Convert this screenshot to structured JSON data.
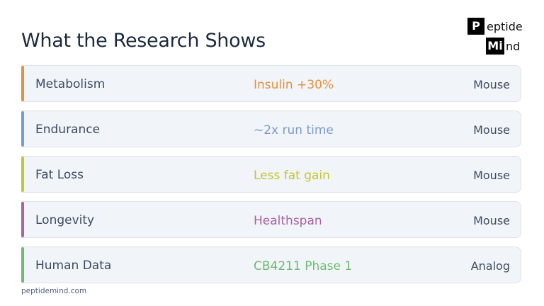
{
  "header": {
    "title": "What the Research Shows",
    "logo": {
      "box1": "P",
      "text1": "eptide",
      "box2": "Mi",
      "text2": "nd"
    }
  },
  "rows": [
    {
      "label": "Metabolism",
      "finding": "Insulin +30%",
      "subject": "Mouse",
      "color": "#e0913f"
    },
    {
      "label": "Endurance",
      "finding": "~2x run time",
      "subject": "Mouse",
      "color": "#7b9cc9"
    },
    {
      "label": "Fat Loss",
      "finding": "Less fat gain",
      "subject": "Mouse",
      "color": "#c2c632"
    },
    {
      "label": "Longevity",
      "finding": "Healthspan",
      "subject": "Mouse",
      "color": "#a8649e"
    },
    {
      "label": "Human Data",
      "finding": "CB4211 Phase 1",
      "subject": "Analog",
      "color": "#6dbb6f"
    }
  ],
  "footer": "peptidemind.com"
}
